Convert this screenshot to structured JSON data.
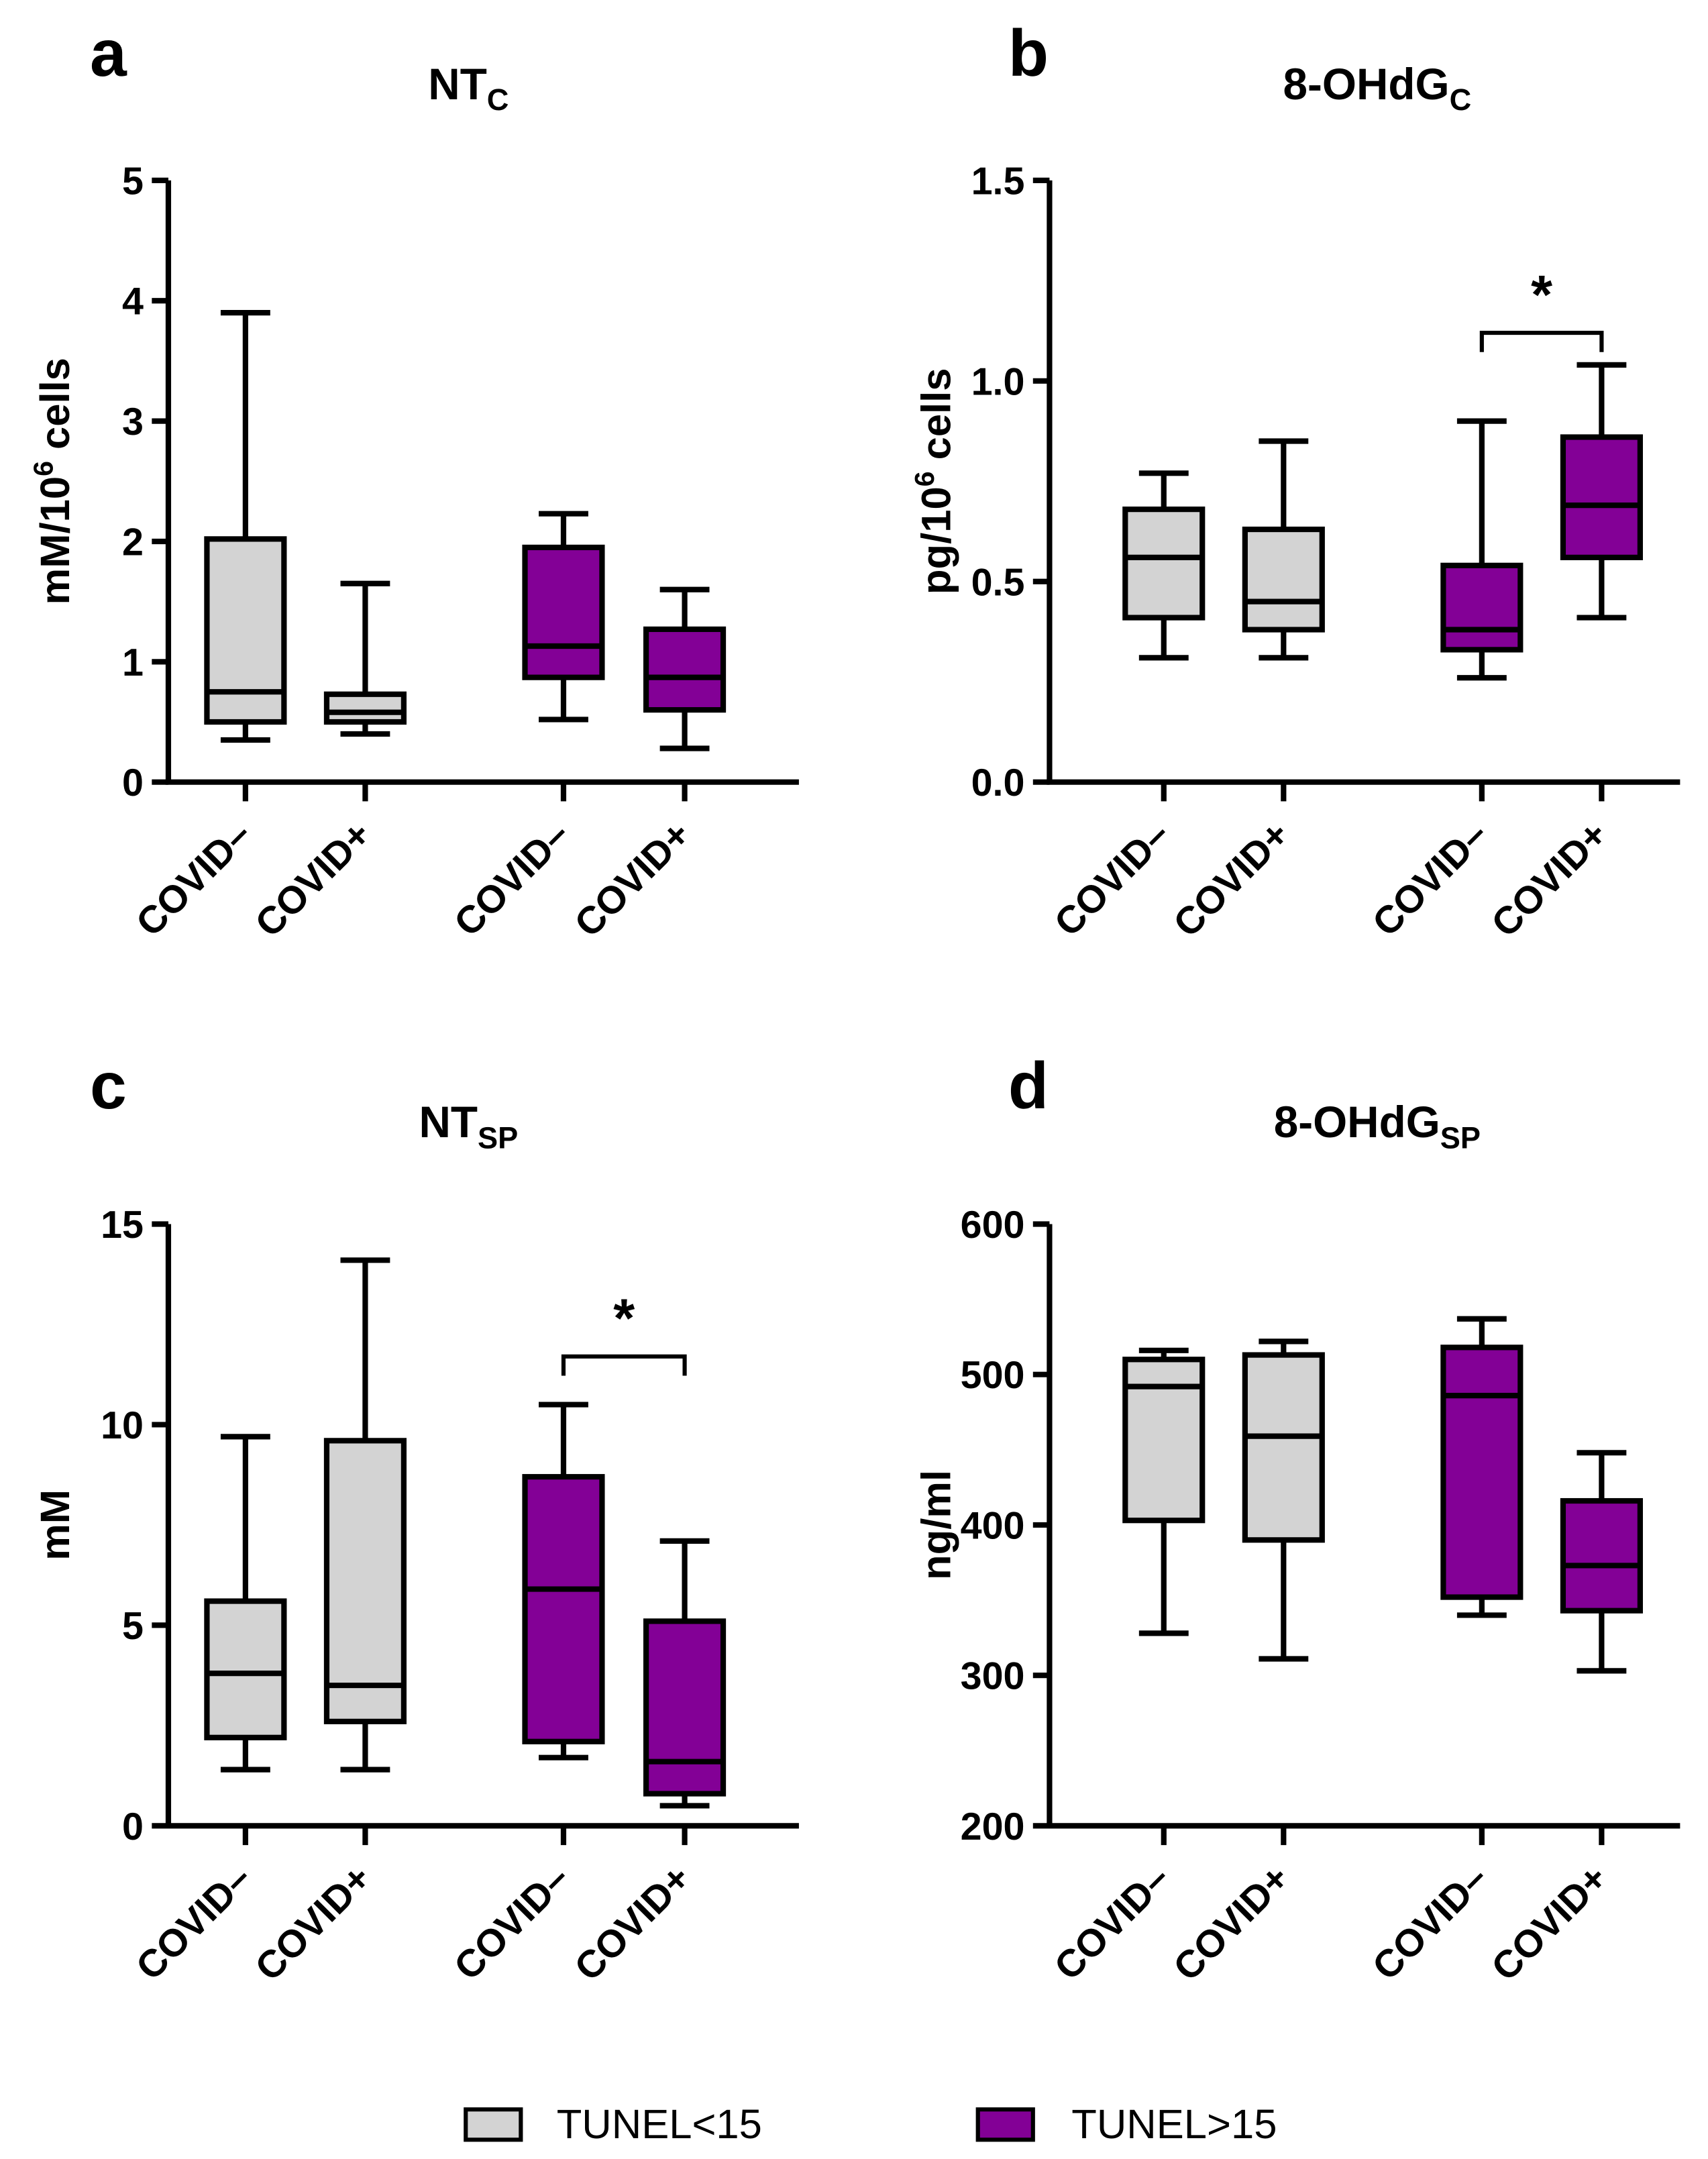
{
  "colors": {
    "tunel_lt15": "#d3d3d3",
    "tunel_gt15": "#830096",
    "stroke": "#000000"
  },
  "legend": {
    "items": [
      {
        "label": "TUNEL<15",
        "color": "#d3d3d3"
      },
      {
        "label": "TUNEL>15",
        "color": "#830096"
      }
    ],
    "placement": "bottom-center"
  },
  "chart_data": [
    {
      "panel": "a",
      "type": "box",
      "title": "NT",
      "title_sub": "C",
      "ylabel": "mM/10",
      "ylabel_sup": "6",
      "ylabel_tail": " cells",
      "ylim": [
        0,
        5
      ],
      "yticks": [
        0,
        1,
        2,
        3,
        4,
        5
      ],
      "ytick_labels": [
        "0",
        "1",
        "2",
        "3",
        "4",
        "5"
      ],
      "categories": [
        "COVID–",
        "COVID+",
        "COVID–",
        "COVID+"
      ],
      "groups": [
        "TUNEL<15",
        "TUNEL<15",
        "TUNEL>15",
        "TUNEL>15"
      ],
      "boxes": [
        {
          "min": 0.35,
          "q1": 0.5,
          "median": 0.75,
          "q3": 2.02,
          "max": 3.9
        },
        {
          "min": 0.4,
          "q1": 0.5,
          "median": 0.58,
          "q3": 0.73,
          "max": 1.65
        },
        {
          "min": 0.52,
          "q1": 0.87,
          "median": 1.13,
          "q3": 1.95,
          "max": 2.23
        },
        {
          "min": 0.28,
          "q1": 0.6,
          "median": 0.87,
          "q3": 1.27,
          "max": 1.6
        }
      ],
      "significance": []
    },
    {
      "panel": "b",
      "type": "box",
      "title": "8-OHdG",
      "title_sub": "C",
      "ylabel": "pg/10",
      "ylabel_sup": "6",
      "ylabel_tail": " cells",
      "ylim": [
        0,
        1.5
      ],
      "yticks": [
        0,
        0.5,
        1.0,
        1.5
      ],
      "ytick_labels": [
        "0.0",
        "0.5",
        "1.0",
        "1.5"
      ],
      "categories": [
        "COVID–",
        "COVID+",
        "COVID–",
        "COVID+"
      ],
      "groups": [
        "TUNEL<15",
        "TUNEL<15",
        "TUNEL>15",
        "TUNEL>15"
      ],
      "boxes": [
        {
          "min": 0.31,
          "q1": 0.41,
          "median": 0.56,
          "q3": 0.68,
          "max": 0.77
        },
        {
          "min": 0.31,
          "q1": 0.38,
          "median": 0.45,
          "q3": 0.63,
          "max": 0.85
        },
        {
          "min": 0.26,
          "q1": 0.33,
          "median": 0.38,
          "q3": 0.54,
          "max": 0.9
        },
        {
          "min": 0.41,
          "q1": 0.56,
          "median": 0.69,
          "q3": 0.86,
          "max": 1.04
        }
      ],
      "significance": [
        {
          "from": 2,
          "to": 3,
          "level": 1.12,
          "label": "*"
        }
      ]
    },
    {
      "panel": "c",
      "type": "box",
      "title": "NT",
      "title_sub": "SP",
      "ylabel": "mM",
      "ylabel_sup": "",
      "ylabel_tail": "",
      "ylim": [
        0,
        15
      ],
      "yticks": [
        0,
        5,
        10,
        15
      ],
      "ytick_labels": [
        "0",
        "5",
        "10",
        "15"
      ],
      "categories": [
        "COVID–",
        "COVID+",
        "COVID–",
        "COVID+"
      ],
      "groups": [
        "TUNEL<15",
        "TUNEL<15",
        "TUNEL>15",
        "TUNEL>15"
      ],
      "boxes": [
        {
          "min": 1.4,
          "q1": 2.2,
          "median": 3.8,
          "q3": 5.6,
          "max": 9.7
        },
        {
          "min": 1.4,
          "q1": 2.6,
          "median": 3.5,
          "q3": 9.6,
          "max": 14.1
        },
        {
          "min": 1.7,
          "q1": 2.1,
          "median": 5.9,
          "q3": 8.7,
          "max": 10.5
        },
        {
          "min": 0.5,
          "q1": 0.8,
          "median": 1.6,
          "q3": 5.1,
          "max": 7.1
        }
      ],
      "significance": [
        {
          "from": 2,
          "to": 3,
          "level": 11.7,
          "label": "*"
        }
      ]
    },
    {
      "panel": "d",
      "type": "box",
      "title": "8-OHdG",
      "title_sub": "SP",
      "ylabel": "ng/ml",
      "ylabel_sup": "",
      "ylabel_tail": "",
      "ylim": [
        200,
        600
      ],
      "yticks": [
        200,
        300,
        400,
        500,
        600
      ],
      "ytick_labels": [
        "200",
        "300",
        "400",
        "500",
        "600"
      ],
      "categories": [
        "COVID–",
        "COVID+",
        "COVID–",
        "COVID+"
      ],
      "groups": [
        "TUNEL<15",
        "TUNEL<15",
        "TUNEL>15",
        "TUNEL>15"
      ],
      "boxes": [
        {
          "min": 328,
          "q1": 403,
          "median": 492,
          "q3": 510,
          "max": 516
        },
        {
          "min": 311,
          "q1": 390,
          "median": 459,
          "q3": 513,
          "max": 522
        },
        {
          "min": 340,
          "q1": 352,
          "median": 486,
          "q3": 518,
          "max": 537
        },
        {
          "min": 303,
          "q1": 343,
          "median": 373,
          "q3": 416,
          "max": 448
        }
      ],
      "significance": []
    }
  ]
}
